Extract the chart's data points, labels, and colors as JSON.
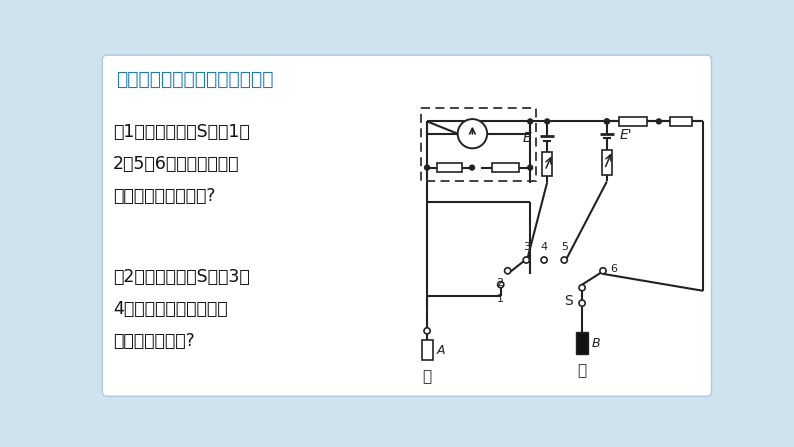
{
  "bg_color": "#cfe3ee",
  "title": "二、多用电表的工作原理示意图",
  "title_color": "#1a7abf",
  "title_fontsize": 13.5,
  "text1": "（1）将开关分别S调到1、\n2、5、6位置时多用电表\n电表分别测的是什么?",
  "text2": "（2）将开关分别S调到3、\n4位置时，多用电表电表\n分别测的是什么?",
  "text_color": "#111111",
  "line_color": "#222222"
}
